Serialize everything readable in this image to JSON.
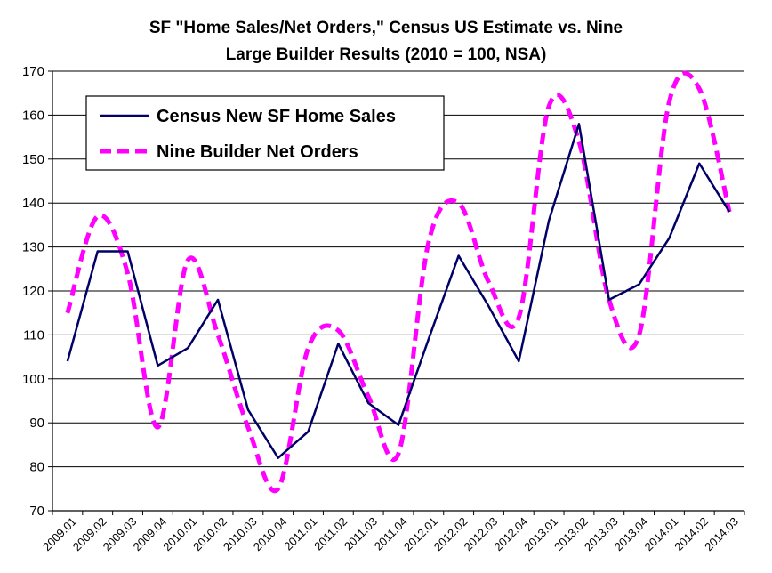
{
  "chart_data": {
    "type": "line",
    "title_lines": [
      "SF \"Home Sales/Net Orders,\" Census US Estimate vs. Nine",
      "Large Builder Results (2010 = 100, NSA)"
    ],
    "xlabel": "",
    "ylabel": "",
    "ylim": [
      70,
      170
    ],
    "yticks": [
      70,
      80,
      90,
      100,
      110,
      120,
      130,
      140,
      150,
      160,
      170
    ],
    "grid": true,
    "legend_position": "top-left",
    "categories": [
      "2009.01",
      "2009.02",
      "2009.03",
      "2009.04",
      "2010.01",
      "2010.02",
      "2010.03",
      "2010.04",
      "2011.01",
      "2011.02",
      "2011.03",
      "2011.04",
      "2012.01",
      "2012.02",
      "2012.03",
      "2012.04",
      "2013.01",
      "2013.02",
      "2013.03",
      "2013.04",
      "2014.01",
      "2014.02",
      "2014.03"
    ],
    "series": [
      {
        "name": "Census New SF Home Sales",
        "color": "#000066",
        "style": "solid",
        "values": [
          104,
          129,
          129,
          103,
          107,
          118,
          93,
          82,
          88,
          108,
          94.5,
          89.5,
          109,
          128,
          116.5,
          104,
          136,
          158,
          118,
          121.5,
          132,
          149,
          138
        ]
      },
      {
        "name": "Nine Builder Net Orders",
        "color": "#ff00ff",
        "style": "dashed",
        "values": [
          115,
          137,
          124,
          89,
          127,
          110,
          89,
          75,
          107,
          111,
          96,
          83,
          131,
          140,
          122,
          114,
          162,
          154,
          118,
          110,
          163,
          166,
          138
        ]
      }
    ]
  }
}
